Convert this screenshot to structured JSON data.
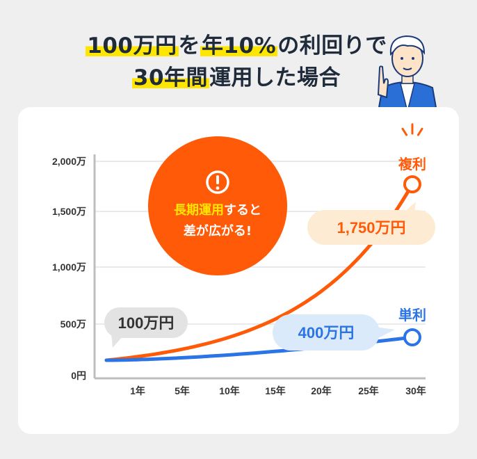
{
  "title": {
    "line1_highlight": "100万円",
    "line1_mid": "を",
    "line1_highlight2": "年10%",
    "line1_rest": "の利回りで",
    "line2_highlight": "30年間",
    "line2_rest": "運用した場合"
  },
  "callout": {
    "emphasis": "長期運用",
    "line1_rest": "すると",
    "line2": "差が広がる!",
    "icon": "exclamation-circle-icon"
  },
  "colors": {
    "compound": "#fe5a08",
    "simple": "#2a74e6",
    "highlight": "#ffe600",
    "callout": "#fe5a08"
  },
  "chart_data": {
    "type": "line",
    "x_ticks": [
      "1年",
      "5年",
      "10年",
      "15年",
      "20年",
      "25年",
      "30年"
    ],
    "y_ticks": [
      "0円",
      "500万",
      "1,000万",
      "1,500万",
      "2,000万"
    ],
    "ylim": [
      0,
      2000
    ],
    "y_unit": "万円",
    "grid": true,
    "series": [
      {
        "name": "複利",
        "label_color": "#fe5a08",
        "x": [
          0,
          5,
          10,
          15,
          20,
          25,
          30
        ],
        "values": [
          100,
          161,
          259,
          418,
          673,
          1083,
          1745
        ],
        "end_label": "1,750万円"
      },
      {
        "name": "単利",
        "label_color": "#2a74e6",
        "x": [
          0,
          5,
          10,
          15,
          20,
          25,
          30
        ],
        "values": [
          100,
          150,
          200,
          250,
          300,
          350,
          400
        ],
        "end_label": "400万円"
      }
    ],
    "start_label": "100万円"
  }
}
